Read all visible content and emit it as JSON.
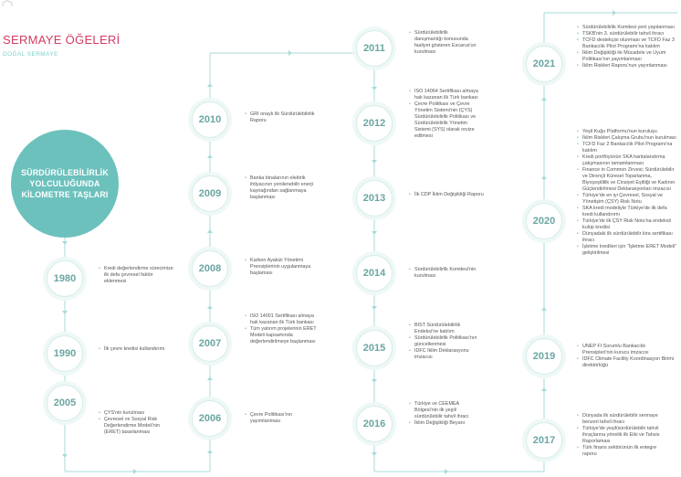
{
  "header": {
    "title": "SERMAYE ÖĞELERİ",
    "subtitle": "DOĞAL SERMAYE"
  },
  "hero": {
    "text": "SÜRDÜRÜLEBİLİRLİK YOLCULUĞUNDA KİLOMETRE TAŞLARI"
  },
  "milestones": {
    "y1980": {
      "year": "1980",
      "items": [
        "Kredi değerlendirme sürecimize ilk defa çevresel faktör eklenmesi"
      ]
    },
    "y1990": {
      "year": "1990",
      "items": [
        "İlk çevre kredisi kullandırımı"
      ]
    },
    "y2005": {
      "year": "2005",
      "items": [
        "ÇYS'nin kurulması",
        "Çevresel ve Sosyal Risk Değerlendirme Modeli'nin (ERET) tasarlanması"
      ]
    },
    "y2006": {
      "year": "2006",
      "items": [
        "Çevre Politikası'nın yayımlanması"
      ]
    },
    "y2007": {
      "year": "2007",
      "items": [
        "ISO 14001 Sertifikası almaya hak kazanan ilk Türk bankası",
        "Tüm yatırım projelerinin ERET Modeli kapsamında değerlendirilmeye başlanması"
      ]
    },
    "y2008": {
      "year": "2008",
      "items": [
        "Karbon Ayakizi Yönetimi Prensiplerinin uygulanmaya başlaması"
      ]
    },
    "y2009": {
      "year": "2009",
      "items": [
        "Banka binalarının elektrik ihtiyacının yenilenebilir enerji kaynağından sağlanmaya başlanması"
      ]
    },
    "y2010": {
      "year": "2010",
      "items": [
        "GRI onaylı ilk Sürdürülebilirlik Raporu"
      ]
    },
    "y2011": {
      "year": "2011",
      "items": [
        "Sürdürülebilirlik danışmanlığı konusunda faaliyet gösteren Escarus'un kurulması"
      ]
    },
    "y2012": {
      "year": "2012",
      "items": [
        "ISO 14064 Sertifikası almaya hak kazanan ilk Türk bankası",
        "Çevre Politikası ve Çevre Yönetim Sistemi'nin (ÇYS) Sürdürülebilirlik Politikası ve Sürdürülebilirlik Yönetim Sistemi (SYS) olarak revize edilmesi"
      ]
    },
    "y2013": {
      "year": "2013",
      "items": [
        "İlk CDP İklim Değişikliği Raporu"
      ]
    },
    "y2014": {
      "year": "2014",
      "items": [
        "Sürdürülebilirlik Komitesi'nin kurulması"
      ]
    },
    "y2015": {
      "year": "2015",
      "items": [
        "BIST Sürdürülebilirlik Endeksi'ne katılım",
        "Sürdürülebilirlik Politikası'nın güncellenmesi",
        "IDFC İklim Deklarasyonu imzacısı"
      ]
    },
    "y2016": {
      "year": "2016",
      "items": [
        "Türkiye ve CEEMEA Bölgesi'nin ilk yeşil/ sürdürülebilir tahvil ihracı",
        "İklim Değişikliği Beyanı"
      ]
    },
    "y2017": {
      "year": "2017",
      "items": [
        "Dünyada ilk sürdürülebilir sermaye benzeri tahvil ihracı",
        "Türkiye'de yeşil/sürdürülebilir tahvil ihraçlarına yönelik ilk Etki ve Tahsis Raporlaması",
        "Türk finans sektörünün ilk entegre raporu"
      ]
    },
    "y2019": {
      "year": "2019",
      "items": [
        "UNEP FI Sorumlu Bankacılık Prensipleri'nin kurucu imzacısı",
        "IDFC Climate Facility Koordinasyon Birimi direktörlüğü"
      ]
    },
    "y2020": {
      "year": "2020",
      "items": [
        "Yeşil Kuğu Platformu'nun kuruluşu",
        "İklim Riskleri Çalışma Grubu'nun kurulması",
        "TCFD Faz 2 Bankacılık Pilot Programı'na katılım",
        "Kredi portföyünün SKA haritalandırma çalışmasının tamamlanması",
        "Finance in Common Zirvesi; Sürdürülebilir ve Dirençli Küresel Toparlanma, Biyoçeşitlilik ve Cinsiyet Eşitliği ve Kadının Güçlendirilmesi Deklarasyonları imzacısı",
        "Türkiye'de en iyi Çevresel, Sosyal ve Yönetişim (ÇSY) Risk Notu",
        "SKA kredi modeliyle Türkiye'de ilk defa kredi kullandırımı",
        "Türkiye'de ilk ÇSY Risk Notu'na endeksli kulüp kredisi",
        "Dünyadaki ilk sürdürülebilir kira sertifikası ihracı",
        "İşletme kredileri için \"İşletme ERET Modeli\" geliştirilmesi"
      ]
    },
    "y2021": {
      "year": "2021",
      "items": [
        "Sürdürülebilirlik Komitesi yeni yapılanması",
        "TSKB'nin 3. sürdürülebilir tahvil ihracı",
        "TCFD destekçisi olunması ve TCFD Faz 3 Bankacılık Pilot Programı'na katılım",
        "İklim Değişikliği ile Mücadele ve Uyum Politikası'nın yayımlanması",
        "İklim Riskleri Raporu'nun yayınlanması"
      ]
    }
  },
  "colors": {
    "accent": "#d23b63",
    "teal": "#6cc1bd",
    "line": "#a9dbd8",
    "year_text": "#6aa6a3"
  }
}
